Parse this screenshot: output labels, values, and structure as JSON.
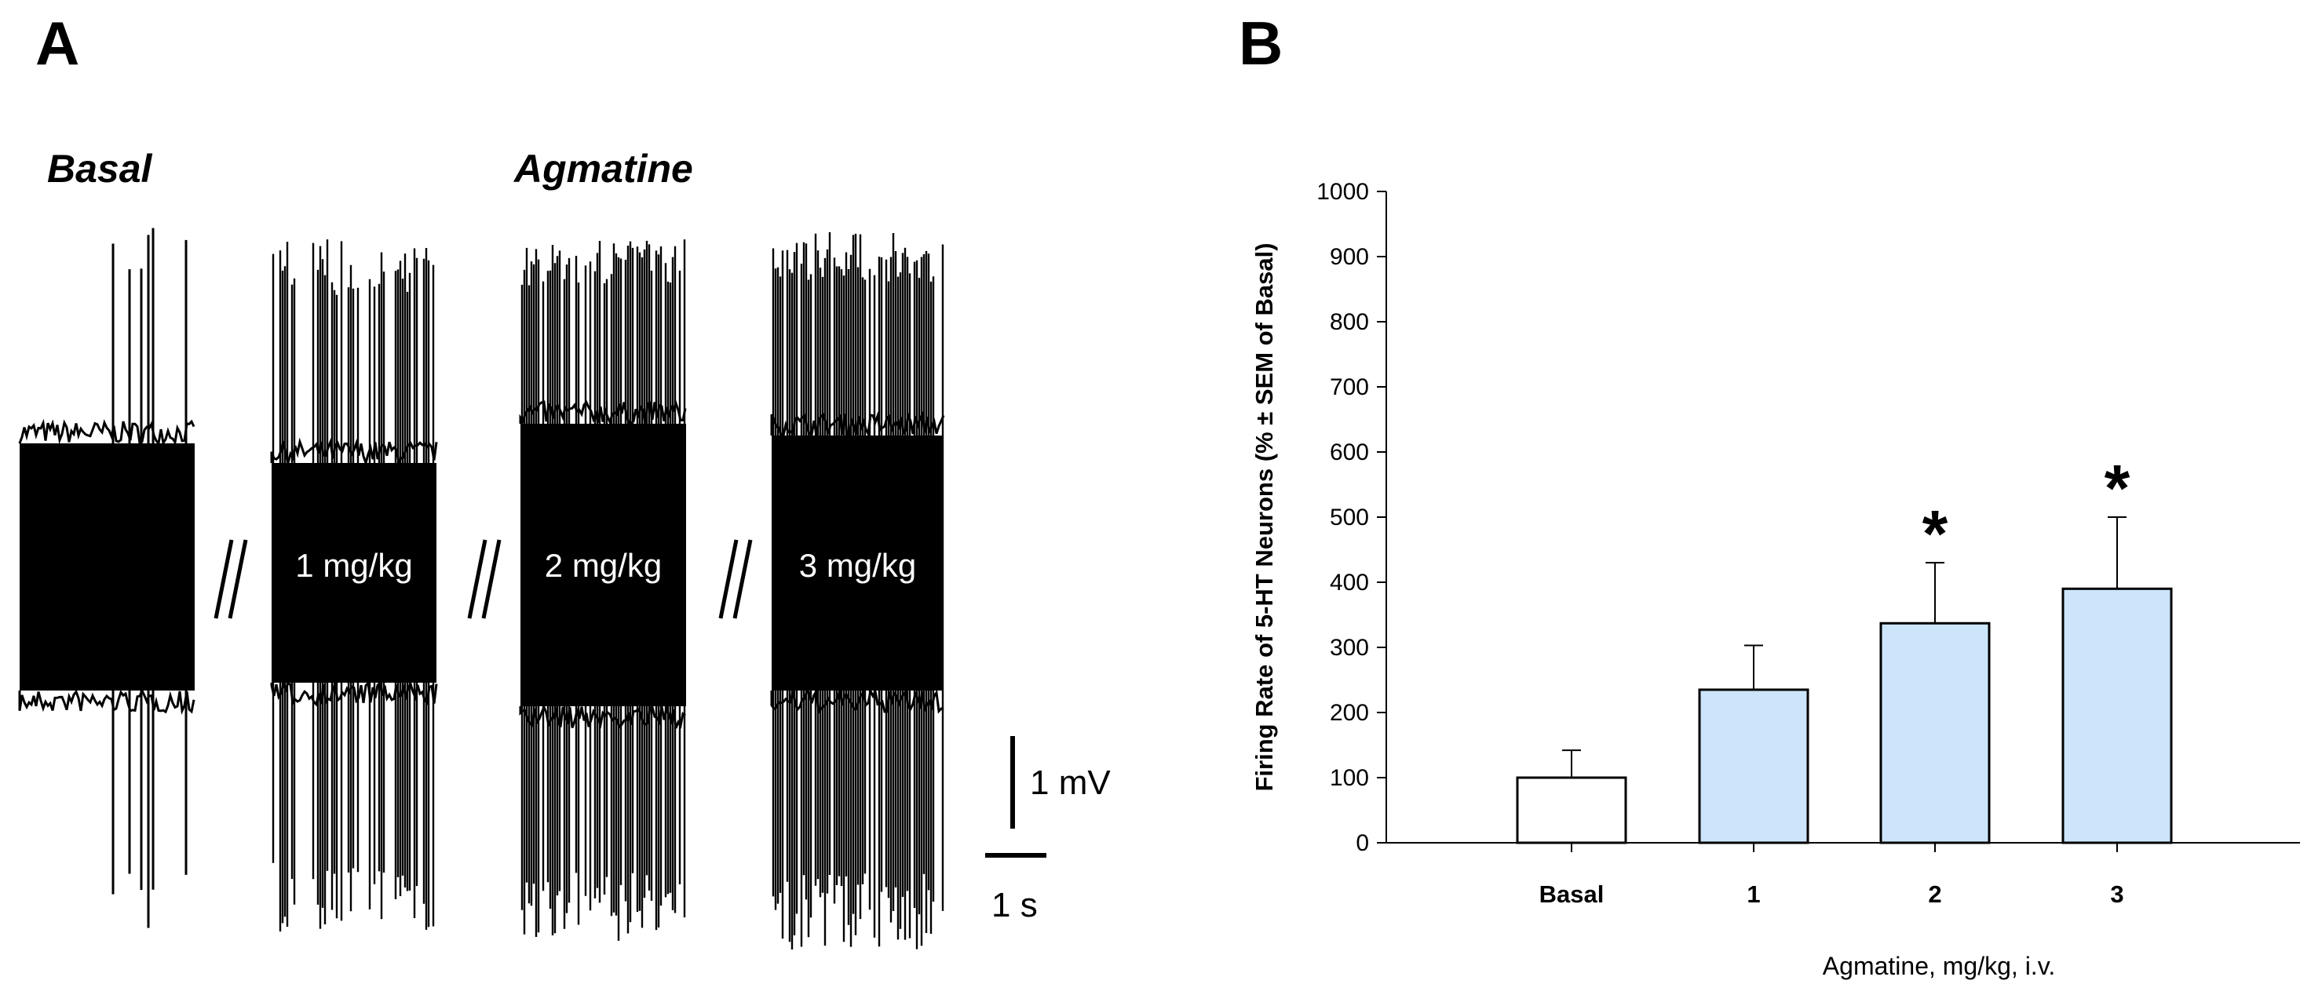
{
  "panel_a": {
    "letter": "A",
    "basal_label": "Basal",
    "agmatine_label": "Agmatine",
    "traces": [
      {
        "id": "basal",
        "label": ""
      },
      {
        "id": "dose1",
        "label": "1 mg/kg"
      },
      {
        "id": "dose2",
        "label": "2 mg/kg"
      },
      {
        "id": "dose3",
        "label": "3 mg/kg"
      }
    ],
    "scale_voltage": "1 mV",
    "scale_time": "1 s"
  },
  "panel_b": {
    "letter": "B",
    "colors": {
      "basal_fill": "#ffffff",
      "agmatine_fill": "#cce5fb",
      "stroke": "#000000"
    }
  },
  "chart_data": {
    "type": "bar",
    "categories": [
      "Basal",
      "1",
      "2",
      "3"
    ],
    "values": [
      100,
      235,
      337,
      390
    ],
    "errors": [
      42,
      68,
      93,
      110
    ],
    "significance": [
      "",
      "",
      "*",
      "*"
    ],
    "xlabel": "Agmatine, mg/kg, i.v.",
    "ylabel": "Firing Rate of 5-HT Neurons (% ± SEM of Basal)",
    "ylim": [
      0,
      1000
    ],
    "yticks": [
      0,
      100,
      200,
      300,
      400,
      500,
      600,
      700,
      800,
      900,
      1000
    ],
    "grid": false,
    "legend": "none"
  }
}
